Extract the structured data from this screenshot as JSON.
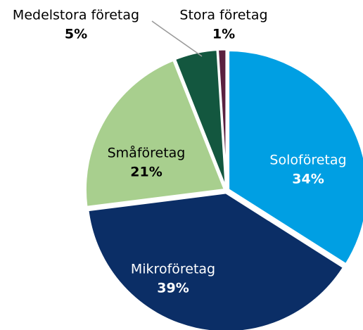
{
  "chart_data": {
    "type": "pie",
    "categories": [
      "Soloföretag",
      "Mikroföretag",
      "Småföretag",
      "Medelstora företag",
      "Stora företag"
    ],
    "values": [
      34,
      39,
      21,
      5,
      1
    ],
    "value_labels": [
      "34%",
      "39%",
      "21%",
      "5%",
      "1%"
    ],
    "colors": [
      "#009fe3",
      "#0b2e66",
      "#a8cf8e",
      "#13573f",
      "#5a2040"
    ]
  }
}
